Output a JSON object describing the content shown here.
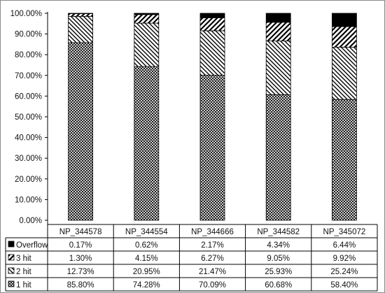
{
  "chart_data": {
    "type": "bar",
    "stacked": true,
    "percent_stacked": true,
    "categories": [
      "NP_344578",
      "NP_344554",
      "NP_344666",
      "NP_344582",
      "NP_345072"
    ],
    "series": [
      {
        "name": "1 hit",
        "pattern": "crosshatch",
        "values": [
          85.8,
          74.28,
          70.09,
          60.68,
          58.4
        ],
        "labels": [
          "85.80%",
          "74.28%",
          "70.09%",
          "60.68%",
          "58.40%"
        ]
      },
      {
        "name": "2 hit",
        "pattern": "diagonal-down",
        "values": [
          12.73,
          20.95,
          21.47,
          25.93,
          25.24
        ],
        "labels": [
          "12.73%",
          "20.95%",
          "21.47%",
          "25.93%",
          "25.24%"
        ]
      },
      {
        "name": "3 hit",
        "pattern": "diagonal-up-wide",
        "values": [
          1.3,
          4.15,
          6.27,
          9.05,
          9.92
        ],
        "labels": [
          "1.30%",
          "4.15%",
          "6.27%",
          "9.05%",
          "9.92%"
        ]
      },
      {
        "name": "Overflow",
        "pattern": "solid-black",
        "values": [
          0.17,
          0.62,
          2.17,
          4.34,
          6.44
        ],
        "labels": [
          "0.17%",
          "0.62%",
          "2.17%",
          "4.34%",
          "6.44%"
        ]
      }
    ],
    "ylim": [
      0,
      100
    ],
    "yticks": [
      "0.00%",
      "10.00%",
      "20.00%",
      "30.00%",
      "40.00%",
      "50.00%",
      "60.00%",
      "70.00%",
      "80.00%",
      "90.00%",
      "100.00%"
    ],
    "table_row_order": [
      "Overflow",
      "3 hit",
      "2 hit",
      "1 hit"
    ],
    "grid": false,
    "legend": "data-table",
    "colors": {
      "border": "#000000",
      "fill": "#ffffff",
      "outer_border": "#8a8a8a"
    }
  }
}
